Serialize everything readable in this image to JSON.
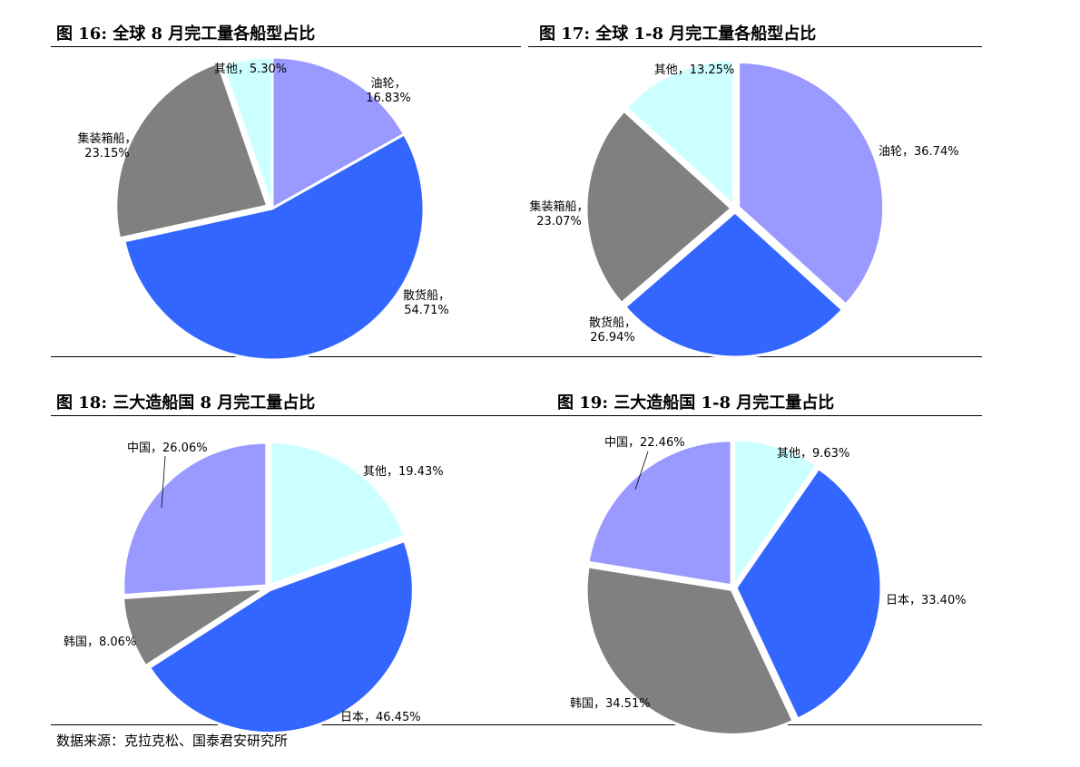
{
  "figures": [
    {
      "title": "图 16:  全球 8 月完工量各船型占比"
    },
    {
      "title": "图 17:  全球 1-8 月完工量各船型占比"
    },
    {
      "title": "图 18:  三大造船国 8 月完工量占比"
    },
    {
      "title": "图 19:  三大造船国 1-8 月完工量占比"
    }
  ],
  "source": "数据来源：克拉克松、国泰君安研究所",
  "chart_data": [
    {
      "type": "pie",
      "title": "图 16:  全球 8 月完工量各船型占比",
      "slices": [
        {
          "name": "油轮",
          "value": 16.83,
          "label": "16.83%",
          "color": "#9999ff"
        },
        {
          "name": "散货船",
          "value": 54.71,
          "label": "54.71%",
          "color": "#3366ff"
        },
        {
          "name": "集装箱船",
          "value": 23.15,
          "label": "23.15%",
          "color": "#808080"
        },
        {
          "name": "其他",
          "value": 5.3,
          "label": "5.30%",
          "color": "#ccffff"
        }
      ]
    },
    {
      "type": "pie",
      "title": "图 17:  全球 1-8 月完工量各船型占比",
      "slices": [
        {
          "name": "油轮",
          "value": 36.74,
          "label": "36.74%",
          "color": "#9999ff"
        },
        {
          "name": "散货船",
          "value": 26.94,
          "label": "26.94%",
          "color": "#3366ff"
        },
        {
          "name": "集装箱船",
          "value": 23.07,
          "label": "23.07%",
          "color": "#808080"
        },
        {
          "name": "其他",
          "value": 13.25,
          "label": "13.25%",
          "color": "#ccffff"
        }
      ]
    },
    {
      "type": "pie",
      "title": "图 18:  三大造船国 8 月完工量占比",
      "slices": [
        {
          "name": "其他",
          "value": 19.43,
          "label": "19.43%",
          "color": "#ccffff"
        },
        {
          "name": "日本",
          "value": 46.45,
          "label": "46.45%",
          "color": "#3366ff"
        },
        {
          "name": "韩国",
          "value": 8.06,
          "label": "8.06%",
          "color": "#808080"
        },
        {
          "name": "中国",
          "value": 26.06,
          "label": "26.06%",
          "color": "#9999ff"
        }
      ]
    },
    {
      "type": "pie",
      "title": "图 19:  三大造船国 1-8 月完工量占比",
      "slices": [
        {
          "name": "其他",
          "value": 9.63,
          "label": "9.63%",
          "color": "#ccffff"
        },
        {
          "name": "日本",
          "value": 33.4,
          "label": "33.40%",
          "color": "#3366ff"
        },
        {
          "name": "韩国",
          "value": 34.51,
          "label": "34.51%",
          "color": "#808080"
        },
        {
          "name": "中国",
          "value": 22.46,
          "label": "22.46%",
          "color": "#9999ff"
        }
      ]
    }
  ]
}
